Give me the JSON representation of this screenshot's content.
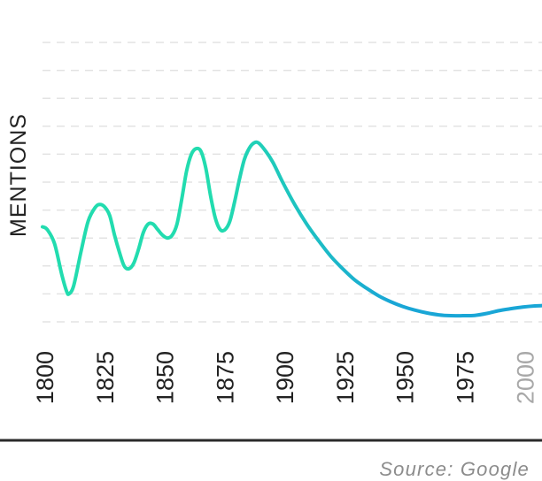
{
  "chart_data": {
    "type": "line",
    "title": "",
    "ylabel": "MENTIONS",
    "xlabel": "",
    "x_ticks": [
      "1800",
      "1825",
      "1850",
      "1875",
      "1900",
      "1925",
      "1950",
      "1975",
      "2000"
    ],
    "faded_ticks": [
      "2000"
    ],
    "xlim": [
      1800,
      2008
    ],
    "ylim": [
      0,
      10
    ],
    "grid": true,
    "grid_style": "dashed horizontal",
    "series": [
      {
        "name": "",
        "color_start": "#22dcaf",
        "color_end": "#19a6d6",
        "x": [
          1800,
          1802,
          1805,
          1808,
          1810,
          1811,
          1813,
          1816,
          1819,
          1822,
          1824,
          1826,
          1828,
          1830,
          1832,
          1834,
          1836,
          1838,
          1840,
          1842,
          1844,
          1846,
          1848,
          1850,
          1852,
          1854,
          1856,
          1858,
          1860,
          1862,
          1864,
          1866,
          1868,
          1870,
          1872,
          1874,
          1876,
          1878,
          1880,
          1882,
          1884,
          1886,
          1888,
          1890,
          1893,
          1896,
          1900,
          1905,
          1910,
          1915,
          1920,
          1925,
          1930,
          1935,
          1940,
          1945,
          1950,
          1955,
          1960,
          1965,
          1970,
          1975,
          1980,
          1985,
          1990,
          1995,
          2000,
          2005,
          2008
        ],
        "values": [
          3.4,
          3.3,
          2.8,
          1.7,
          1.1,
          1.0,
          1.3,
          2.5,
          3.6,
          4.1,
          4.2,
          4.1,
          3.8,
          3.1,
          2.5,
          2.0,
          1.9,
          2.1,
          2.6,
          3.2,
          3.5,
          3.5,
          3.3,
          3.1,
          3.0,
          3.1,
          3.5,
          4.4,
          5.4,
          6.0,
          6.2,
          6.1,
          5.5,
          4.5,
          3.7,
          3.3,
          3.3,
          3.6,
          4.3,
          5.1,
          5.8,
          6.2,
          6.4,
          6.4,
          6.1,
          5.7,
          5.0,
          4.2,
          3.5,
          2.9,
          2.35,
          1.9,
          1.5,
          1.2,
          0.93,
          0.72,
          0.55,
          0.42,
          0.32,
          0.25,
          0.22,
          0.22,
          0.23,
          0.3,
          0.4,
          0.47,
          0.53,
          0.57,
          0.58
        ]
      }
    ]
  },
  "source": "Source: Google"
}
